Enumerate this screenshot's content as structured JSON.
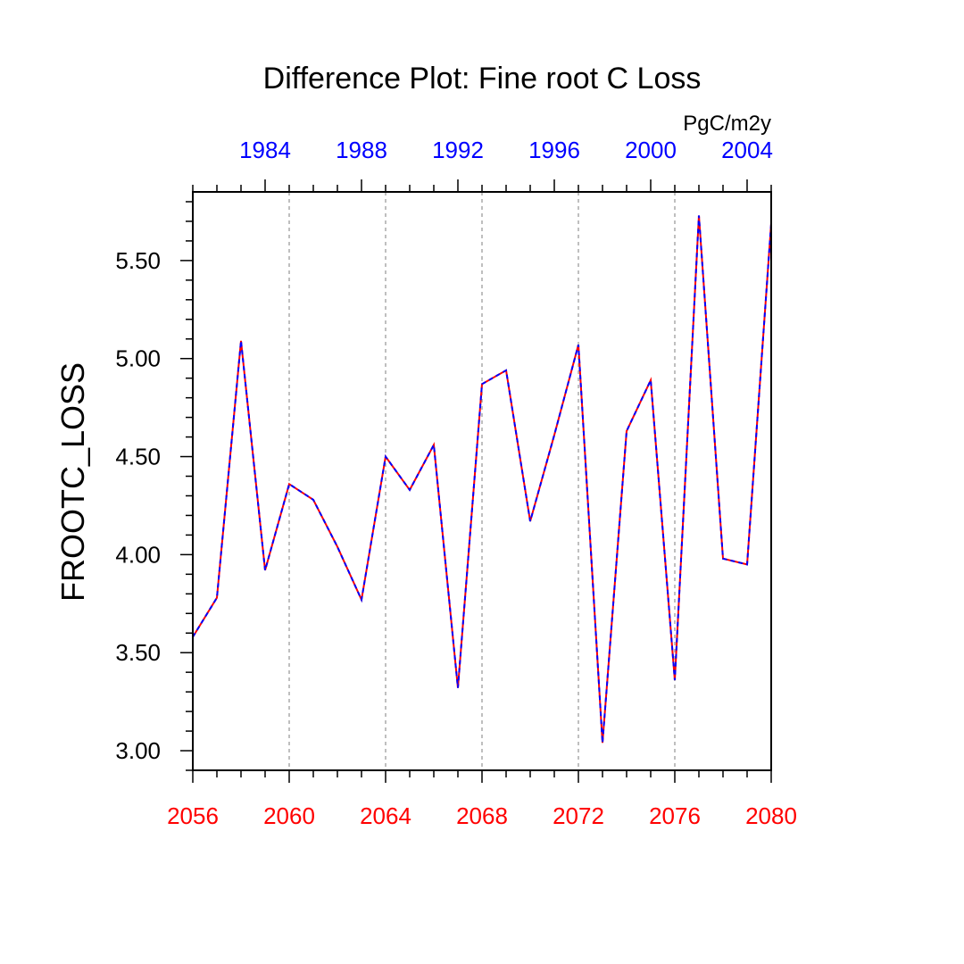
{
  "chart_data": {
    "type": "line",
    "title": "Difference Plot: Fine root C Loss",
    "units": "PgC/m2y",
    "ylabel": "FROOTC_LOSS",
    "xlabel": "",
    "xlim": [
      2056,
      2080
    ],
    "ylim": [
      2.9,
      5.85
    ],
    "grid": "vertical dashed at major x ticks",
    "colors": {
      "bottom_axis_labels": "#ff0000",
      "top_axis_labels": "#0000ff",
      "series_a": "#ff0000",
      "series_b": "#0000ff",
      "grid": "#aaaaaa"
    },
    "x_bottom_ticks": [
      "2056",
      "2060",
      "2064",
      "2068",
      "2072",
      "2076",
      "2080"
    ],
    "x_top_ticks": [
      "1984",
      "1988",
      "1992",
      "1996",
      "2000",
      "2004"
    ],
    "x_top_tick_values": [
      2059,
      2063,
      2067,
      2071,
      2075,
      2079
    ],
    "y_ticks": [
      "3.00",
      "3.50",
      "4.00",
      "4.50",
      "5.00",
      "5.50"
    ],
    "x": [
      2056,
      2057,
      2058,
      2059,
      2060,
      2061,
      2062,
      2063,
      2064,
      2065,
      2066,
      2067,
      2068,
      2069,
      2070,
      2071,
      2072,
      2073,
      2074,
      2075,
      2076,
      2077,
      2078,
      2079,
      2080
    ],
    "series": [
      {
        "values": [
          3.58,
          3.78,
          5.09,
          3.92,
          4.36,
          4.28,
          4.04,
          3.77,
          4.5,
          4.33,
          4.56,
          3.32,
          4.87,
          4.94,
          4.17,
          4.61,
          5.07,
          3.04,
          4.63,
          4.89,
          3.36,
          5.73,
          3.98,
          3.95,
          5.69
        ]
      }
    ]
  }
}
